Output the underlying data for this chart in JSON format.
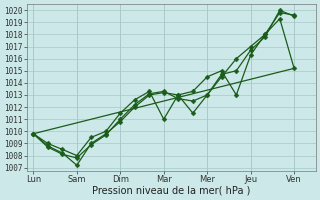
{
  "xlabel": "Pression niveau de la mer( hPa )",
  "ylim": [
    1007,
    1020.5
  ],
  "yticks": [
    1007,
    1008,
    1009,
    1010,
    1011,
    1012,
    1013,
    1014,
    1015,
    1016,
    1017,
    1018,
    1019,
    1020
  ],
  "x_labels": [
    "Lun",
    "Sam",
    "Dim",
    "Mar",
    "Mer",
    "Jeu",
    "Ven"
  ],
  "x_positions": [
    0,
    1,
    2,
    3,
    4,
    5,
    6
  ],
  "xlim": [
    -0.15,
    6.5
  ],
  "bg_color": "#cce8e8",
  "grid_color": "#a8c8c8",
  "line_color": "#1a5c1a",
  "series": [
    {
      "x": [
        0,
        0.33,
        0.67,
        1.0,
        1.33,
        1.67,
        2.0,
        2.33,
        2.67,
        3.0,
        3.33,
        3.67,
        4.0,
        4.33,
        4.67,
        5.0,
        5.33,
        5.67,
        6.0
      ],
      "y": [
        1009.8,
        1009.0,
        1008.5,
        1008.0,
        1009.5,
        1010.0,
        1011.5,
        1012.6,
        1013.3,
        1011.0,
        1013.0,
        1013.3,
        1014.5,
        1015.0,
        1013.0,
        1016.3,
        1018.0,
        1019.3,
        1015.2
      ],
      "marker": "D",
      "markersize": 2.5,
      "linewidth": 0.9
    },
    {
      "x": [
        0,
        0.33,
        0.67,
        1.0,
        1.33,
        1.67,
        2.0,
        2.33,
        2.67,
        3.0,
        3.33,
        3.67,
        4.0,
        4.33,
        4.67,
        5.0,
        5.33,
        5.67,
        6.0
      ],
      "y": [
        1009.8,
        1008.8,
        1008.2,
        1007.2,
        1009.0,
        1009.8,
        1010.8,
        1012.0,
        1013.0,
        1013.2,
        1013.0,
        1011.5,
        1013.0,
        1014.7,
        1015.0,
        1016.7,
        1017.8,
        1020.0,
        1019.5
      ],
      "marker": "D",
      "markersize": 2.5,
      "linewidth": 0.9
    },
    {
      "x": [
        0,
        0.33,
        0.67,
        1.0,
        1.33,
        1.67,
        2.0,
        2.33,
        2.67,
        3.0,
        3.33,
        3.67,
        4.0,
        4.33,
        4.67,
        5.0,
        5.33,
        5.67,
        6.0
      ],
      "y": [
        1009.8,
        1008.7,
        1008.1,
        1007.8,
        1008.9,
        1009.7,
        1011.0,
        1012.2,
        1013.1,
        1013.3,
        1012.7,
        1012.5,
        1013.0,
        1014.5,
        1016.0,
        1017.0,
        1018.0,
        1019.8,
        1019.6
      ],
      "marker": "D",
      "markersize": 2.5,
      "linewidth": 0.9
    },
    {
      "x": [
        0,
        6.0
      ],
      "y": [
        1009.8,
        1015.2
      ],
      "marker": null,
      "markersize": 0,
      "linewidth": 0.9
    }
  ]
}
